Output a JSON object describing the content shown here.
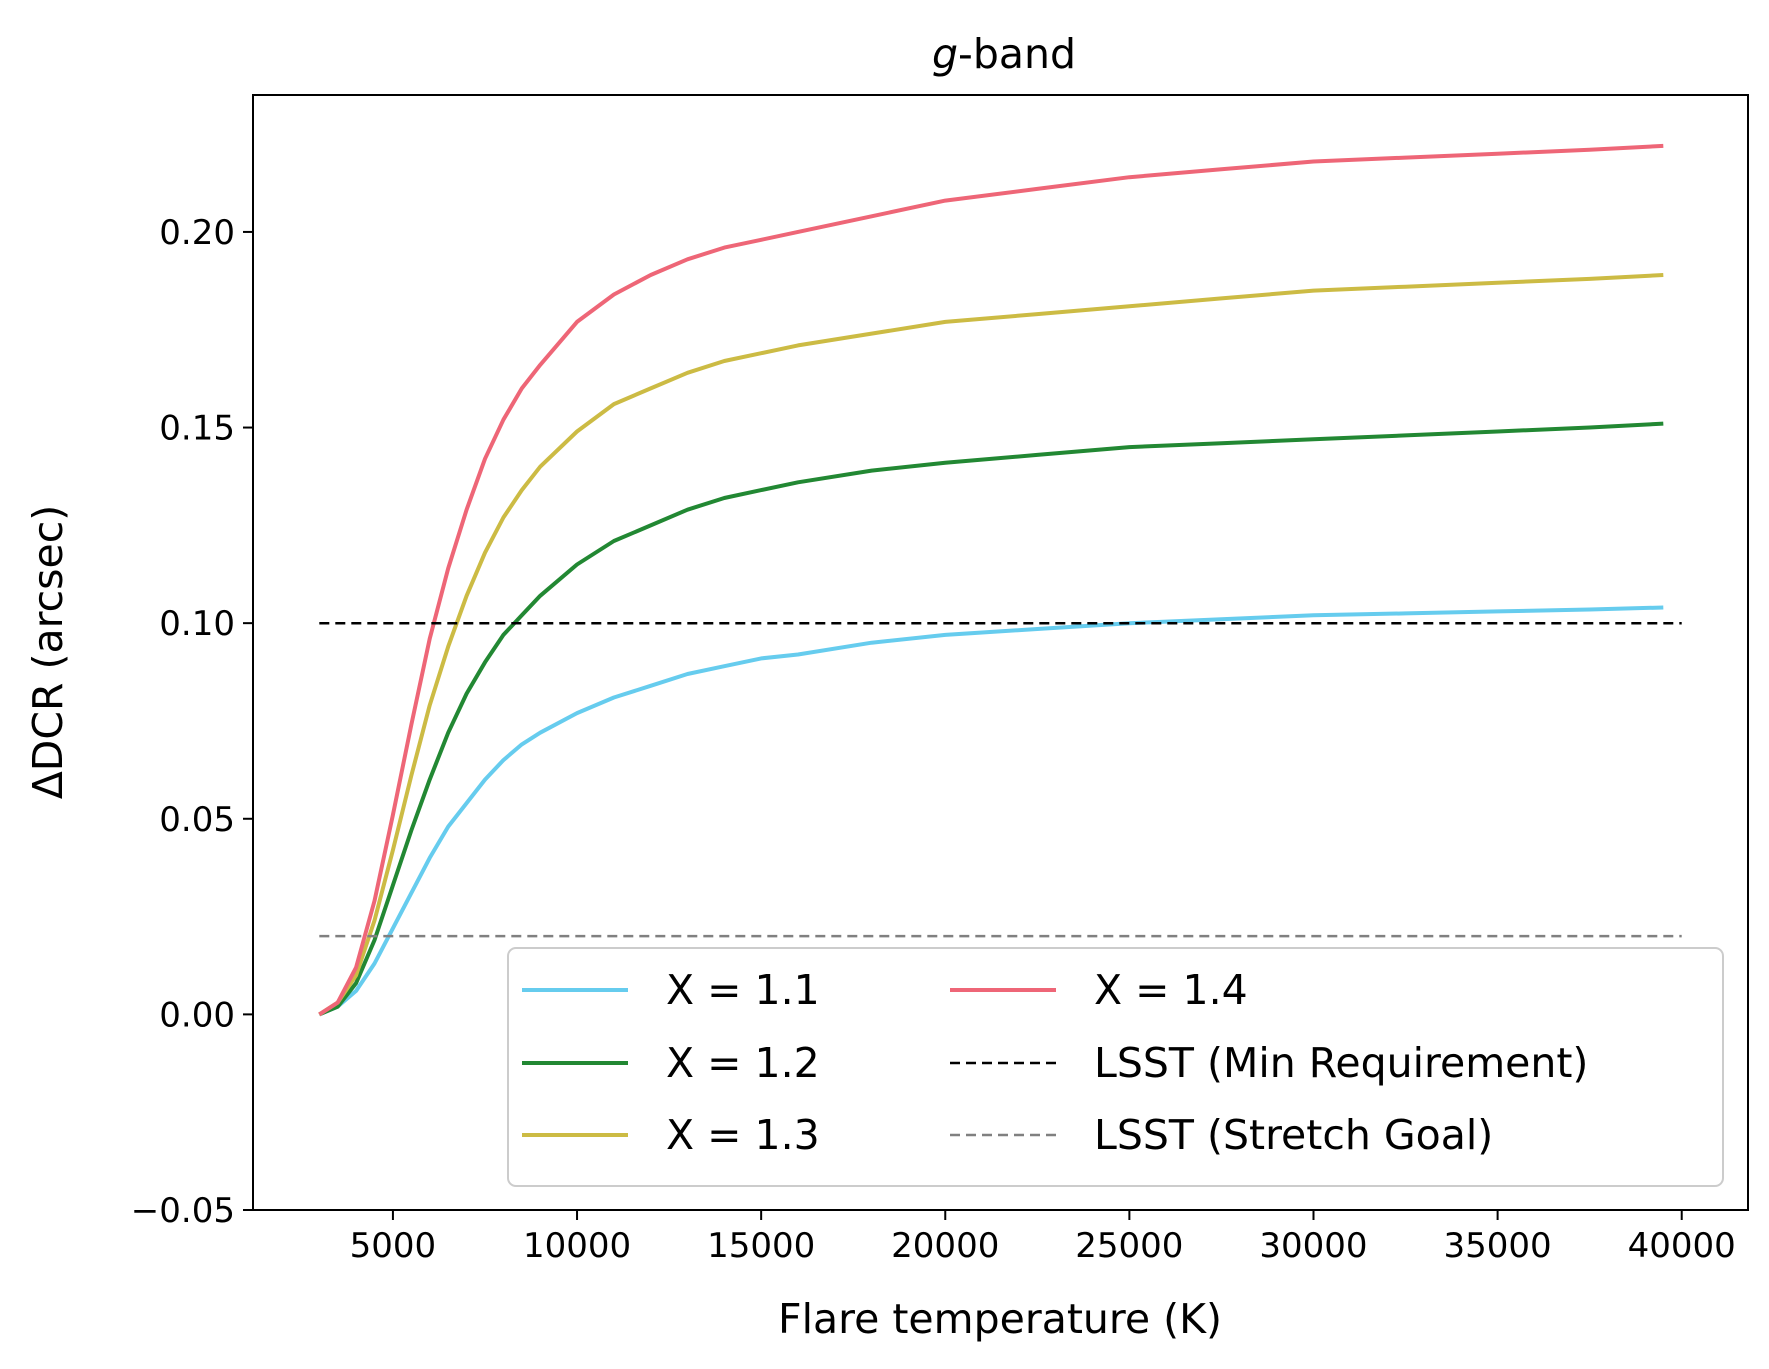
{
  "chart_data": {
    "type": "line",
    "title_italic": "g",
    "title_rest": "-band",
    "xlabel": "Flare temperature (K)",
    "ylabel": "ΔDCR (arcsec)",
    "xlim": [
      1200,
      41800
    ],
    "ylim": [
      -0.05,
      0.235
    ],
    "xticks": [
      5000,
      10000,
      15000,
      20000,
      25000,
      30000,
      35000,
      40000
    ],
    "yticks": [
      -0.05,
      0.0,
      0.05,
      0.1,
      0.15,
      0.2
    ],
    "ytick_labels": [
      "−0.05",
      "0.00",
      "0.05",
      "0.10",
      "0.15",
      "0.20"
    ],
    "grid": false,
    "legend_placement": "lower-right",
    "x": [
      3000,
      3500,
      4000,
      4500,
      5000,
      5500,
      6000,
      6500,
      7000,
      7500,
      8000,
      8500,
      9000,
      10000,
      11000,
      12000,
      13000,
      14000,
      15000,
      16000,
      18000,
      20000,
      22500,
      25000,
      27500,
      30000,
      32500,
      35000,
      37500,
      39500
    ],
    "series": [
      {
        "name": "X = 1.1",
        "color": "#66ccee",
        "style": "solid",
        "values": [
          0.0,
          0.002,
          0.006,
          0.013,
          0.022,
          0.031,
          0.04,
          0.048,
          0.054,
          0.06,
          0.065,
          0.069,
          0.072,
          0.077,
          0.081,
          0.084,
          0.087,
          0.089,
          0.091,
          0.092,
          0.095,
          0.097,
          0.0985,
          0.1,
          0.101,
          0.102,
          0.1025,
          0.103,
          0.1035,
          0.104
        ]
      },
      {
        "name": "X = 1.2",
        "color": "#228833",
        "style": "solid",
        "values": [
          0.0,
          0.002,
          0.008,
          0.019,
          0.033,
          0.047,
          0.06,
          0.072,
          0.082,
          0.09,
          0.097,
          0.102,
          0.107,
          0.115,
          0.121,
          0.125,
          0.129,
          0.132,
          0.134,
          0.136,
          0.139,
          0.141,
          0.143,
          0.145,
          0.146,
          0.147,
          0.148,
          0.149,
          0.15,
          0.151
        ]
      },
      {
        "name": "X = 1.3",
        "color": "#ccbb44",
        "style": "solid",
        "values": [
          0.0,
          0.003,
          0.01,
          0.024,
          0.042,
          0.061,
          0.079,
          0.094,
          0.107,
          0.118,
          0.127,
          0.134,
          0.14,
          0.149,
          0.156,
          0.16,
          0.164,
          0.167,
          0.169,
          0.171,
          0.174,
          0.177,
          0.179,
          0.181,
          0.183,
          0.185,
          0.186,
          0.187,
          0.188,
          0.189
        ]
      },
      {
        "name": "X = 1.4",
        "color": "#ee6677",
        "style": "solid",
        "values": [
          0.0,
          0.003,
          0.012,
          0.029,
          0.051,
          0.074,
          0.096,
          0.114,
          0.129,
          0.142,
          0.152,
          0.16,
          0.166,
          0.177,
          0.184,
          0.189,
          0.193,
          0.196,
          0.198,
          0.2,
          0.204,
          0.208,
          0.211,
          0.214,
          0.216,
          0.218,
          0.219,
          0.22,
          0.221,
          0.222
        ]
      },
      {
        "name": "LSST (Min Requirement)",
        "color": "#000000",
        "style": "dashed",
        "x": [
          3000,
          40000
        ],
        "values": [
          0.1,
          0.1
        ]
      },
      {
        "name": "LSST (Stretch Goal)",
        "color": "#808080",
        "style": "dashed",
        "x": [
          3000,
          40000
        ],
        "values": [
          0.02,
          0.02
        ]
      }
    ]
  }
}
